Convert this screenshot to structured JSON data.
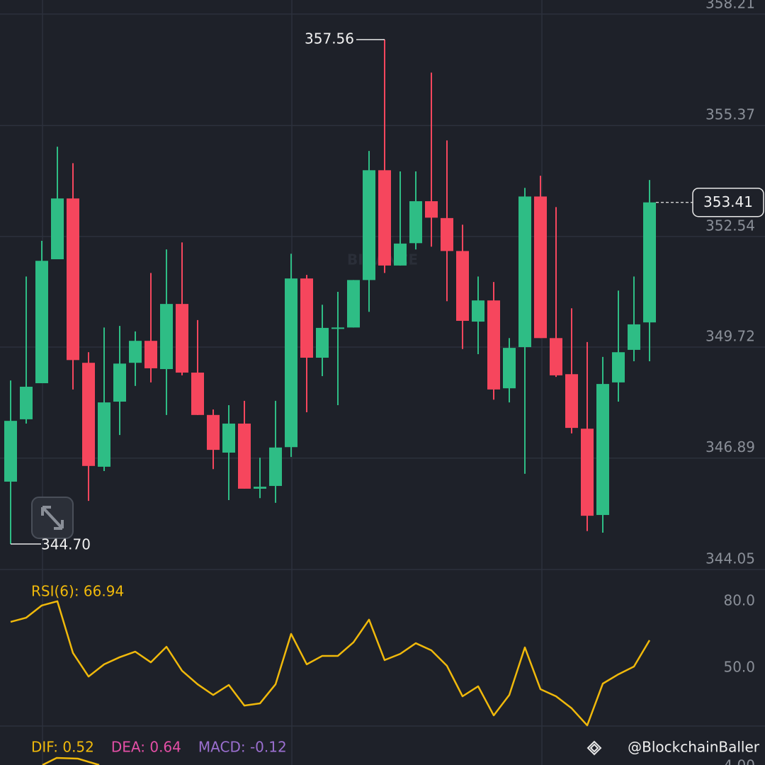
{
  "chart_data": {
    "type": "candlestick",
    "up_color": "#2ebd85",
    "down_color": "#f6465d",
    "open": [
      346.29,
      347.88,
      348.8,
      351.96,
      353.51,
      349.32,
      346.67,
      348.33,
      349.32,
      349.88,
      349.16,
      350.82,
      349.07,
      347.99,
      347.03,
      347.77,
      346.11,
      346.18,
      347.17,
      351.47,
      349.45,
      350.19,
      350.22,
      351.43,
      354.23,
      351.8,
      352.37,
      353.44,
      353.01,
      352.17,
      350.37,
      350.91,
      348.67,
      349.72,
      353.56,
      349.95,
      349.03,
      347.64,
      345.44,
      348.82,
      349.65,
      350.35
    ],
    "high": [
      348.87,
      351.52,
      352.43,
      354.83,
      354.41,
      349.59,
      350.22,
      350.26,
      350.12,
      351.61,
      352.21,
      352.39,
      350.41,
      348.13,
      348.24,
      348.35,
      346.9,
      348.35,
      352.1,
      351.56,
      350.8,
      351.13,
      351.43,
      354.72,
      357.56,
      354.2,
      354.2,
      356.72,
      354.99,
      352.84,
      351.52,
      351.38,
      349.95,
      353.78,
      354.09,
      353.29,
      350.71,
      349.85,
      349.47,
      351.16,
      351.52,
      353.98
    ],
    "low": [
      344.7,
      347.77,
      348.8,
      351.96,
      348.64,
      345.8,
      346.56,
      347.48,
      348.73,
      348.82,
      347.99,
      349.0,
      347.99,
      346.61,
      345.82,
      346.11,
      345.87,
      345.75,
      346.92,
      348.06,
      348.98,
      348.24,
      350.22,
      350.62,
      351.61,
      351.8,
      352.21,
      352.28,
      350.89,
      349.67,
      349.54,
      348.38,
      348.31,
      346.49,
      349.95,
      348.96,
      347.52,
      345.03,
      344.99,
      348.33,
      349.36,
      349.36
    ],
    "close": [
      347.84,
      348.71,
      351.92,
      353.51,
      349.39,
      346.69,
      348.31,
      349.3,
      349.88,
      349.18,
      350.82,
      349.07,
      347.99,
      347.1,
      347.77,
      346.11,
      346.16,
      347.16,
      351.47,
      349.45,
      350.21,
      350.22,
      351.43,
      354.23,
      351.8,
      352.36,
      353.44,
      353.02,
      352.17,
      350.39,
      350.91,
      348.64,
      349.7,
      353.56,
      349.95,
      349.0,
      347.66,
      345.42,
      348.78,
      349.59,
      350.3,
      353.41
    ],
    "ylim": [
      344.05,
      358.57
    ],
    "yticks": [
      358.21,
      355.37,
      352.54,
      349.72,
      346.89,
      344.05
    ],
    "high_label": 357.56,
    "low_label": {
      "value": 344.7,
      "label": "344.70"
    },
    "last_price": 353.41,
    "watermark": "BINANCE",
    "rsi": {
      "title": "RSI(6): 66.94",
      "color": "#f0b90b",
      "values": [
        75.2,
        77.1,
        82.6,
        84.5,
        61.2,
        50.6,
        56.1,
        59.3,
        61.8,
        57.0,
        64.0,
        53.2,
        47.1,
        42.3,
        46.8,
        37.5,
        38.5,
        47.1,
        69.8,
        56.1,
        59.9,
        59.9,
        66.0,
        76.2,
        58.0,
        60.8,
        65.6,
        62.4,
        55.4,
        41.7,
        46.2,
        33.1,
        42.3,
        63.7,
        44.9,
        41.7,
        36.3,
        28.6,
        47.4,
        51.6,
        55.1,
        66.94
      ],
      "ylim": [
        28.3,
        98.8
      ],
      "yticks": [
        {
          "value": 80,
          "label": "80.0"
        },
        {
          "value": 50,
          "label": "50.0"
        }
      ]
    },
    "macd": [
      {
        "text": "DIF: 0.52",
        "color": "#f0b90b"
      },
      {
        "text": "DEA: 0.64",
        "color": "#e44fa6"
      },
      {
        "text": "MACD: -0.12",
        "color": "#9b6fd0"
      }
    ],
    "macd_tick": "4.00",
    "credit": "@BlockchainBaller"
  }
}
